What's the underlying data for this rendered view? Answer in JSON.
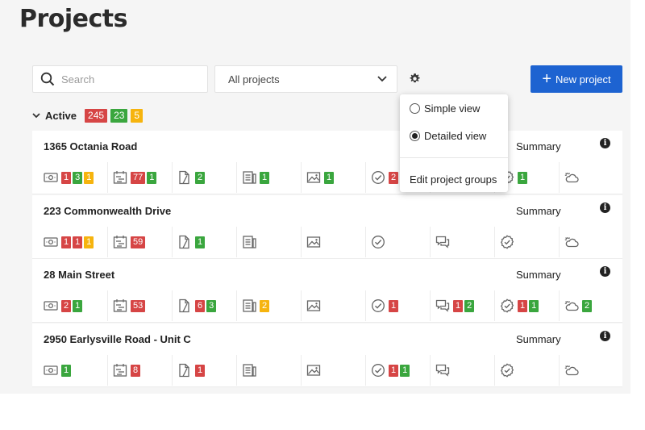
{
  "page": {
    "title": "Projects"
  },
  "toolbar": {
    "search_placeholder": "Search",
    "filter_value": "All projects",
    "new_project_label": "New project",
    "accent_color": "#1d63d1"
  },
  "group": {
    "label": "Active",
    "counts": [
      {
        "value": "245",
        "color": "red"
      },
      {
        "value": "23",
        "color": "green"
      },
      {
        "value": "5",
        "color": "amber"
      }
    ]
  },
  "popup": {
    "options": [
      {
        "label": "Simple view",
        "selected": false
      },
      {
        "label": "Detailed view",
        "selected": true
      }
    ],
    "edit_label": "Edit project groups"
  },
  "status_colors": {
    "red": "#d64545",
    "green": "#3aa63e",
    "amber": "#f6b40e"
  },
  "column_icons": [
    "money-icon",
    "schedule-icon",
    "document-icon",
    "report-icon",
    "photo-icon",
    "checklist-icon",
    "chat-icon",
    "inspection-icon",
    "weather-icon"
  ],
  "summary_label": "Summary",
  "projects": [
    {
      "name": "1365 Octania Road",
      "cells": [
        [
          {
            "v": "1",
            "c": "red"
          },
          {
            "v": "3",
            "c": "green"
          },
          {
            "v": "1",
            "c": "amber"
          }
        ],
        [
          {
            "v": "77",
            "c": "red"
          },
          {
            "v": "1",
            "c": "green"
          }
        ],
        [
          {
            "v": "2",
            "c": "green"
          }
        ],
        [
          {
            "v": "1",
            "c": "green"
          }
        ],
        [
          {
            "v": "1",
            "c": "green"
          }
        ],
        [
          {
            "v": "2",
            "c": "red"
          }
        ],
        [],
        [
          {
            "v": "1",
            "c": "green"
          }
        ],
        []
      ]
    },
    {
      "name": "223 Commonwealth Drive",
      "cells": [
        [
          {
            "v": "1",
            "c": "red"
          },
          {
            "v": "1",
            "c": "red"
          },
          {
            "v": "1",
            "c": "amber"
          }
        ],
        [
          {
            "v": "59",
            "c": "red"
          }
        ],
        [
          {
            "v": "1",
            "c": "green"
          }
        ],
        [],
        [],
        [],
        [],
        [],
        []
      ]
    },
    {
      "name": "28 Main Street",
      "cells": [
        [
          {
            "v": "2",
            "c": "red"
          },
          {
            "v": "1",
            "c": "green"
          }
        ],
        [
          {
            "v": "53",
            "c": "red"
          }
        ],
        [
          {
            "v": "6",
            "c": "red"
          },
          {
            "v": "3",
            "c": "green"
          }
        ],
        [
          {
            "v": "2",
            "c": "amber"
          }
        ],
        [],
        [
          {
            "v": "1",
            "c": "red"
          }
        ],
        [
          {
            "v": "1",
            "c": "red"
          },
          {
            "v": "2",
            "c": "green"
          }
        ],
        [
          {
            "v": "1",
            "c": "red"
          },
          {
            "v": "1",
            "c": "green"
          }
        ],
        [
          {
            "v": "2",
            "c": "green"
          }
        ]
      ]
    },
    {
      "name": "2950 Earlysville Road - Unit C",
      "cells": [
        [
          {
            "v": "1",
            "c": "green"
          }
        ],
        [
          {
            "v": "8",
            "c": "red"
          }
        ],
        [
          {
            "v": "1",
            "c": "red"
          }
        ],
        [],
        [],
        [
          {
            "v": "1",
            "c": "red"
          },
          {
            "v": "1",
            "c": "green"
          }
        ],
        [],
        [],
        []
      ]
    }
  ]
}
